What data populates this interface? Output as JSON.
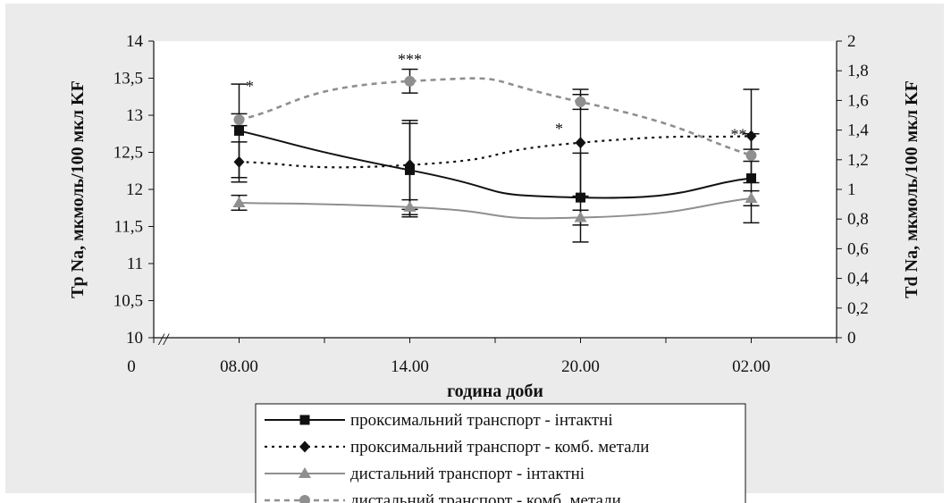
{
  "chart_data": {
    "type": "line",
    "title": "",
    "xlabel": "година доби",
    "ylabel_left": "Tp Na, мкмоль/100 мкл KF",
    "ylabel_right": "Td Na, мкмоль/100 мкл KF",
    "x_origin_label": "0",
    "axis_break_mark": "//",
    "categories": [
      "08.00",
      "14.00",
      "20.00",
      "02.00"
    ],
    "ylim_left": [
      10,
      14
    ],
    "ylim_right": [
      0,
      2
    ],
    "yticks_left": [
      "10",
      "10,5",
      "11",
      "11,5",
      "12",
      "12,5",
      "13",
      "13,5",
      "14"
    ],
    "yticks_right": [
      "0",
      "0,2",
      "0,4",
      "0,6",
      "0,8",
      "1",
      "1,2",
      "1,4",
      "1,6",
      "1,8",
      "2"
    ],
    "grid": false,
    "legend_position": "bottom",
    "series": [
      {
        "name": "проксимальний транспорт - інтактні",
        "axis": "left",
        "values": [
          12.79,
          12.26,
          11.89,
          12.15
        ],
        "errors": [
          0.63,
          0.63,
          0.6,
          0.6
        ],
        "color": "#111111",
        "dash": "solid",
        "marker": "square"
      },
      {
        "name": "проксимальний транспорт - комб. метали",
        "axis": "left",
        "values": [
          12.37,
          12.33,
          12.63,
          12.72
        ],
        "errors": [
          0.27,
          0.6,
          0.72,
          0.63
        ],
        "color": "#111111",
        "dash": "dotted",
        "marker": "diamond"
      },
      {
        "name": "дистальний транспорт - інтактні",
        "axis": "right",
        "values": [
          0.91,
          0.88,
          0.81,
          0.94
        ],
        "errors": [
          0.05,
          0.05,
          0.05,
          0.05
        ],
        "color": "#8f8f8f",
        "dash": "solid",
        "marker": "triangle"
      },
      {
        "name": "дистальний транспорт - комб. метали",
        "axis": "right",
        "values": [
          1.47,
          1.73,
          1.59,
          1.23
        ],
        "errors": [
          0.04,
          0.08,
          0.05,
          0.04
        ],
        "color": "#8f8f8f",
        "dash": "dashed",
        "marker": "circle"
      }
    ],
    "annotations": [
      {
        "text": "*",
        "category": "08.00",
        "axis": "left",
        "y": 13.32
      },
      {
        "text": "***",
        "category": "14.00",
        "axis": "left",
        "y": 13.68
      },
      {
        "text": "*",
        "category": "20.00",
        "axis": "left",
        "y": 12.75
      },
      {
        "text": "**",
        "category": "02.00",
        "axis": "left",
        "y": 12.67
      }
    ]
  }
}
